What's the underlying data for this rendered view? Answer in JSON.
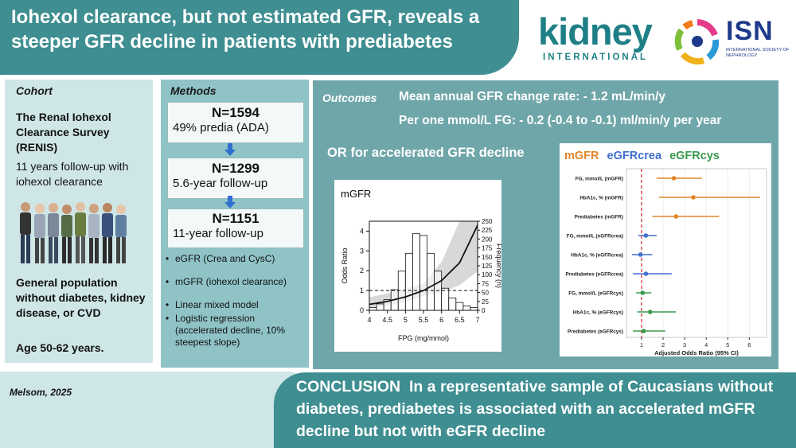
{
  "title": "Iohexol clearance, but not estimated GFR, reveals a steeper GFR decline in patients with prediabetes",
  "logos": {
    "kidney_word": "kidney",
    "kidney_sub": "INTERNATIONAL",
    "isn_word": "ISN",
    "isn_sub": "INTERNATIONAL SOCIETY OF NEPHROLOGY"
  },
  "cohort": {
    "heading": "Cohort",
    "study_name": "The Renal Iohexol Clearance Survey (RENIS)",
    "followup": "11 years follow-up with iohexol clearance",
    "population": "General population without diabetes, kidney disease, or CVD",
    "age": "Age 50-62 years."
  },
  "methods": {
    "heading": "Methods",
    "steps": [
      {
        "n": "N=1594",
        "desc": "49% predia (ADA)"
      },
      {
        "n": "N=1299",
        "desc": "5.6-year follow-up"
      },
      {
        "n": "N=1151",
        "desc": "11-year follow-up"
      }
    ],
    "bullets": [
      "eGFR (Crea and CysC)",
      "mGFR (iohexol clearance)",
      "Linear mixed model",
      "Logistic regression (accelerated decline, 10% steepest slope)"
    ]
  },
  "outcomes": {
    "heading": "Outcomes",
    "line1": "Mean annual GFR change rate: - 1.2 mL/min/y",
    "line2": "Per one mmol/L FG:  - 0.2 (-0.4 to -0.1) ml/min/y per year",
    "or_heading": "OR for accelerated GFR decline"
  },
  "colors": {
    "banner": "#3f8e91",
    "mgfr": "#e0862a",
    "egfrcrea": "#3f6fcf",
    "egfrcys": "#3a9a4e",
    "refline": "#e02020"
  },
  "chart_data": [
    {
      "type": "bar",
      "title": "mGFR",
      "xlabel": "FPG (mg/mmol)",
      "ylabel": "Odds Ratio",
      "y2label": "Frequency (n)",
      "xlim": [
        4,
        7
      ],
      "ylim": [
        0,
        4.5
      ],
      "y2lim": [
        0,
        250
      ],
      "xticks": [
        "4",
        "4.5",
        "5",
        "5.5",
        "6",
        "6.5",
        "7"
      ],
      "yticks": [
        "0",
        "1",
        "2",
        "3",
        "4"
      ],
      "y2ticks": [
        "0",
        "25",
        "50",
        "75",
        "100",
        "125",
        "150",
        "175",
        "200",
        "225",
        "250"
      ],
      "hist": {
        "bin_edges": [
          4.0,
          4.2,
          4.4,
          4.6,
          4.8,
          5.0,
          5.2,
          5.4,
          5.6,
          5.8,
          6.0,
          6.2,
          6.4,
          6.6,
          6.8,
          7.0
        ],
        "counts": [
          8,
          18,
          30,
          58,
          110,
          160,
          215,
          210,
          160,
          110,
          62,
          35,
          22,
          12,
          8
        ]
      },
      "or_curve": {
        "x": [
          4.0,
          4.5,
          5.0,
          5.5,
          6.0,
          6.5,
          7.0
        ],
        "y": [
          0.3,
          0.45,
          0.68,
          1.0,
          1.5,
          2.4,
          4.3
        ]
      },
      "reference_line": 1
    },
    {
      "type": "scatter",
      "title_parts": [
        "mGFR",
        "eGFRcrea",
        "eGFRcys"
      ],
      "xlabel": "Adjusted Odds Ratio (95% CI)",
      "xlim": [
        0.3,
        6.8
      ],
      "xticks": [
        "1",
        "2",
        "3",
        "4",
        "5",
        "6"
      ],
      "reference_line": 1,
      "rows": [
        {
          "label": "FG, mmol/L (mGFR)",
          "group": "mgfr",
          "or": 2.5,
          "lo": 1.7,
          "hi": 3.8
        },
        {
          "label": "HbA1c, % (mGFR)",
          "group": "mgfr",
          "or": 3.4,
          "lo": 1.8,
          "hi": 6.5
        },
        {
          "label": "Prediabetes (mGFR)",
          "group": "mgfr",
          "or": 2.6,
          "lo": 1.5,
          "hi": 4.6
        },
        {
          "label": "FG, mmol/L (eGFRcrea)",
          "group": "egfrcrea",
          "or": 1.2,
          "lo": 0.85,
          "hi": 1.7
        },
        {
          "label": "HbA1c, % (eGFRcrea)",
          "group": "egfrcrea",
          "or": 0.95,
          "lo": 0.55,
          "hi": 1.5
        },
        {
          "label": "Prediabetes (eGFRcrea)",
          "group": "egfrcrea",
          "or": 1.2,
          "lo": 0.6,
          "hi": 2.4
        },
        {
          "label": "FG, mmol/L (eGFRcys)",
          "group": "egfrcys",
          "or": 1.05,
          "lo": 0.75,
          "hi": 1.45
        },
        {
          "label": "HbA1c, % (eGFRcys)",
          "group": "egfrcys",
          "or": 1.4,
          "lo": 0.8,
          "hi": 2.6
        },
        {
          "label": "Prediabetes (eGFRcys)",
          "group": "egfrcys",
          "or": 1.1,
          "lo": 0.6,
          "hi": 2.1
        }
      ]
    }
  ],
  "author": "Melsom, 2025",
  "conclusion": {
    "label": "CONCLUSION",
    "text": "In a representative sample of Caucasians without diabetes, prediabetes is associated with an accelerated mGFR decline but not with eGFR decline"
  }
}
